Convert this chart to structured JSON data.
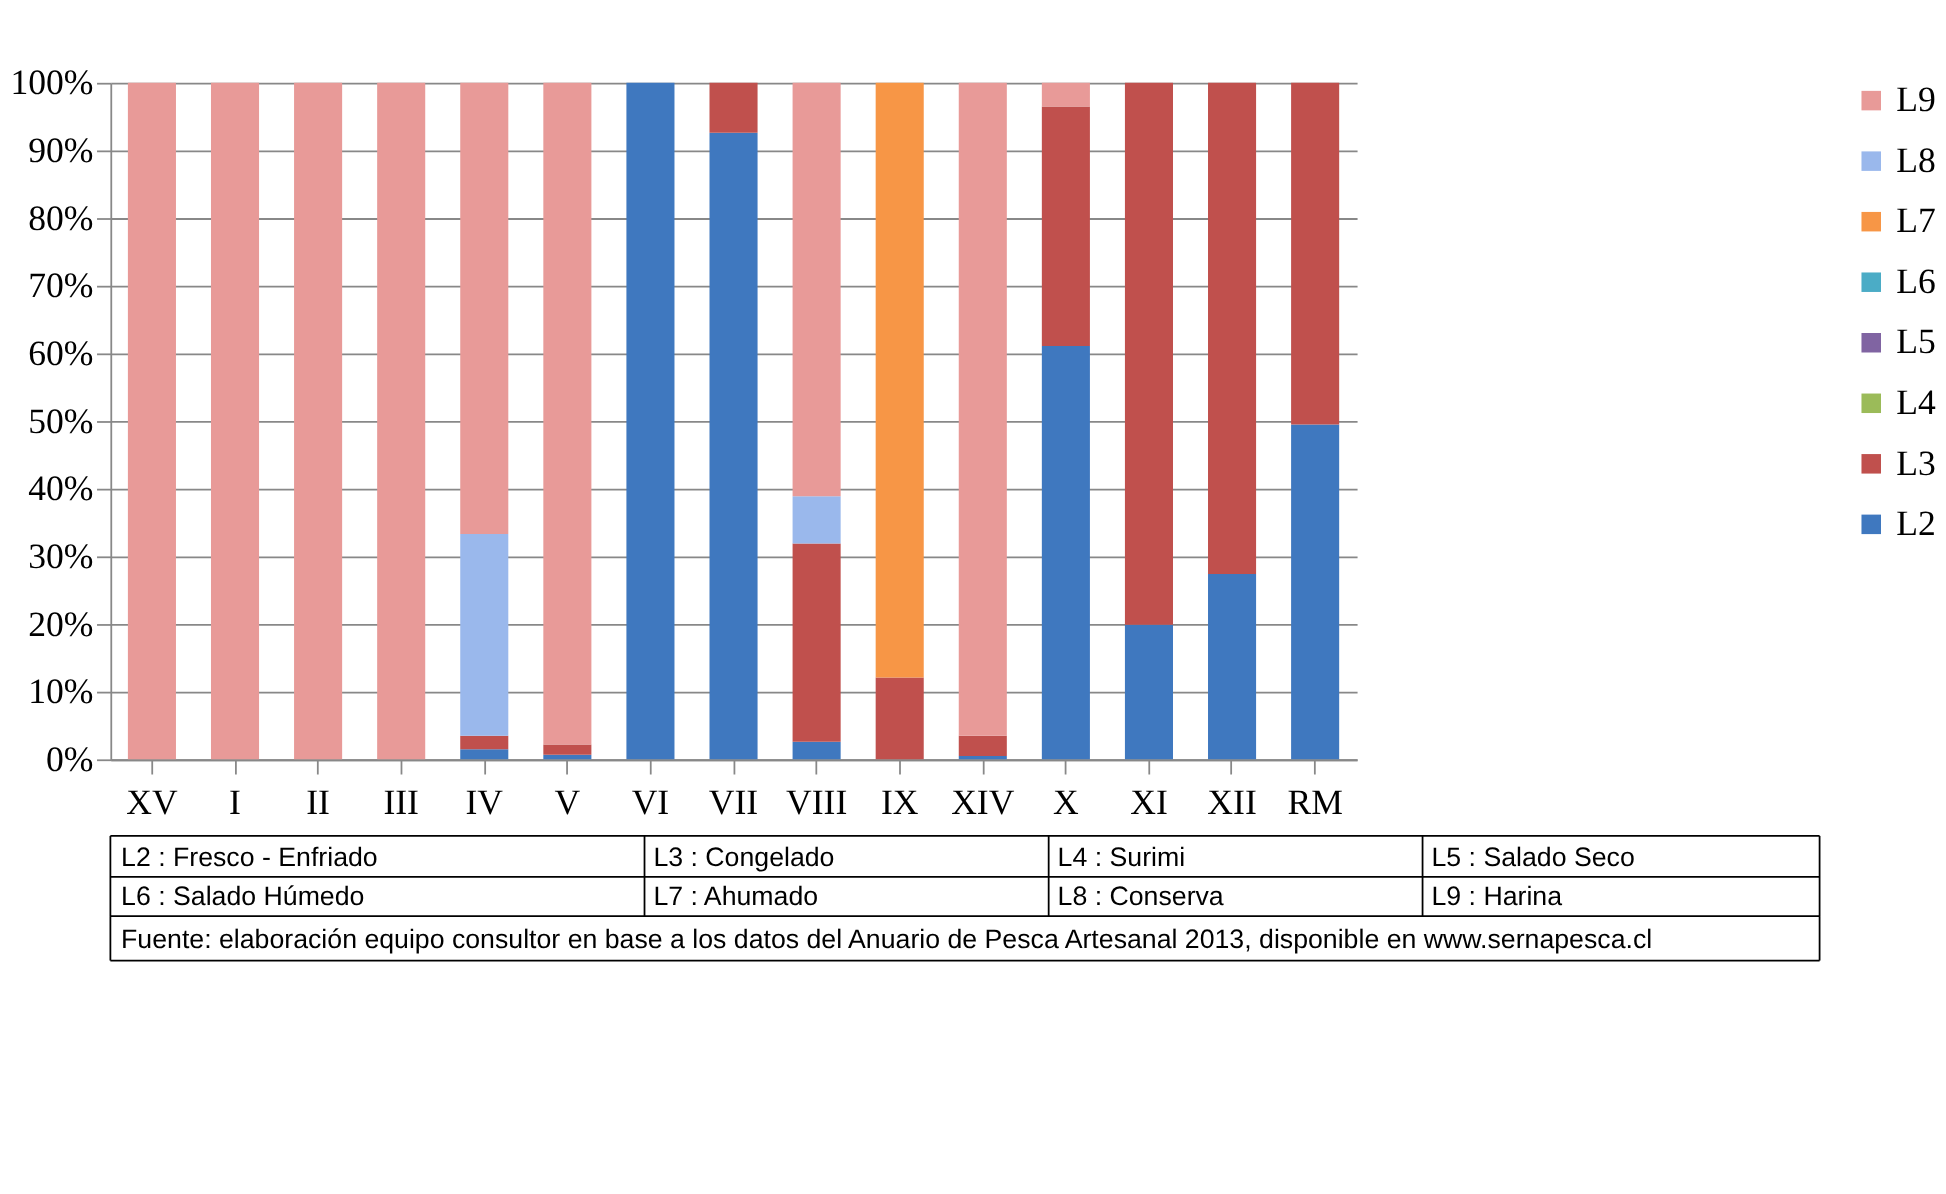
{
  "chart_data": {
    "type": "bar",
    "stacked": true,
    "categories": [
      "XV",
      "I",
      "II",
      "III",
      "IV",
      "V",
      "VI",
      "VII",
      "VIII",
      "IX",
      "XIV",
      "X",
      "XI",
      "XII",
      "RM"
    ],
    "series": [
      {
        "name": "L2",
        "color": "#3f78bf",
        "values": [
          null,
          null,
          null,
          null,
          1.5,
          0.7,
          100,
          92.6,
          2.6,
          null,
          0.5,
          61.1,
          19.9,
          27.4,
          49.5
        ]
      },
      {
        "name": "L3",
        "color": "#c0504d",
        "values": [
          null,
          null,
          null,
          null,
          2,
          1.5,
          null,
          7.4,
          29.3,
          12.1,
          3,
          35.4,
          80.1,
          72.6,
          50.5
        ]
      },
      {
        "name": "L4",
        "color": "#9bbb59",
        "values": [
          null,
          null,
          null,
          null,
          null,
          null,
          null,
          null,
          null,
          null,
          null,
          null,
          null,
          null,
          null
        ]
      },
      {
        "name": "L5",
        "color": "#8064a2",
        "values": [
          null,
          null,
          null,
          null,
          null,
          null,
          null,
          null,
          null,
          null,
          null,
          null,
          null,
          null,
          null
        ]
      },
      {
        "name": "L6",
        "color": "#4bacc6",
        "values": [
          null,
          null,
          null,
          null,
          null,
          null,
          null,
          null,
          null,
          null,
          null,
          null,
          null,
          null,
          null
        ]
      },
      {
        "name": "L7",
        "color": "#f79646",
        "values": [
          null,
          null,
          null,
          null,
          null,
          null,
          null,
          null,
          null,
          87.9,
          null,
          null,
          null,
          null,
          null
        ]
      },
      {
        "name": "L8",
        "color": "#9ab8ec",
        "values": [
          null,
          null,
          null,
          null,
          29.8,
          null,
          null,
          null,
          7,
          null,
          null,
          null,
          null,
          null,
          null
        ]
      },
      {
        "name": "L9",
        "color": "#e89a98",
        "values": [
          100,
          100,
          100,
          100,
          66.7,
          97.8,
          null,
          null,
          61.1,
          null,
          96.5,
          3.5,
          null,
          null,
          null
        ]
      }
    ],
    "ylim": [
      0,
      100
    ],
    "yticks": [
      {
        "value": 0,
        "label": "0%"
      },
      {
        "value": 10,
        "label": "10%"
      },
      {
        "value": 20,
        "label": "20%"
      },
      {
        "value": 30,
        "label": "30%"
      },
      {
        "value": 40,
        "label": "40%"
      },
      {
        "value": 50,
        "label": "50%"
      },
      {
        "value": 60,
        "label": "60%"
      },
      {
        "value": 70,
        "label": "70%"
      },
      {
        "value": 80,
        "label": "80%"
      },
      {
        "value": 90,
        "label": "90%"
      },
      {
        "value": 100,
        "label": "100%"
      }
    ],
    "grid": "y",
    "legend": "right",
    "annotations": [
      "L2 : Fresco - Enfriado",
      "L3 : Congelado",
      "L4 : Surimi",
      "L5 : Salado Seco",
      "L6 : Salado Húmedo",
      "L7 : Ahumado",
      "L8 : Conserva",
      "L9 : Harina",
      "Fuente: elaboración equipo consultor en base a los datos del Anuario de Pesca Artesanal 2013, disponible en www.sernapesca.cl"
    ]
  }
}
